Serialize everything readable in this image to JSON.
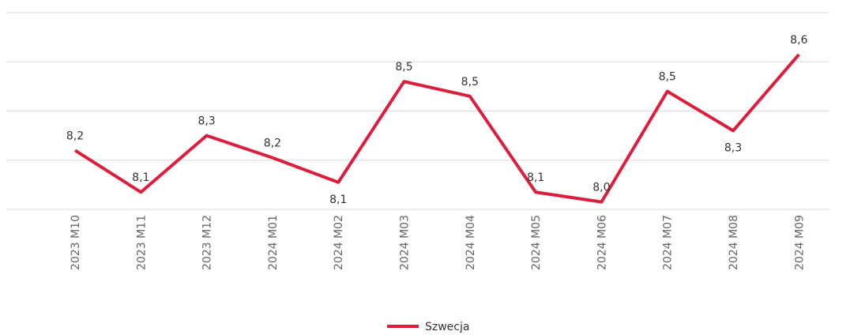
{
  "chart_data": {
    "type": "line",
    "categories": [
      "2023 M10",
      "2023 M11",
      "2023 M12",
      "2024 M01",
      "2024 M02",
      "2024 M03",
      "2024 M04",
      "2024 M05",
      "2024 M06",
      "2024 M07",
      "2024 M08",
      "2024 M09"
    ],
    "series": [
      {
        "name": "Szwecja",
        "color": "#dc1e3c",
        "values": [
          8.24,
          8.07,
          8.3,
          8.21,
          8.11,
          8.52,
          8.46,
          8.07,
          8.03,
          8.48,
          8.32,
          8.63
        ],
        "value_labels": [
          "8,2",
          "8,1",
          "8,3",
          "8,2",
          "8,1",
          "8,5",
          "8,5",
          "8,1",
          "8,0",
          "8,5",
          "8,3",
          "8,6"
        ]
      }
    ],
    "ylim": [
      8.0,
      8.8
    ],
    "yticks": [
      8.0,
      8.2,
      8.4,
      8.6,
      8.8
    ],
    "grid": true,
    "legend": "bottom"
  }
}
